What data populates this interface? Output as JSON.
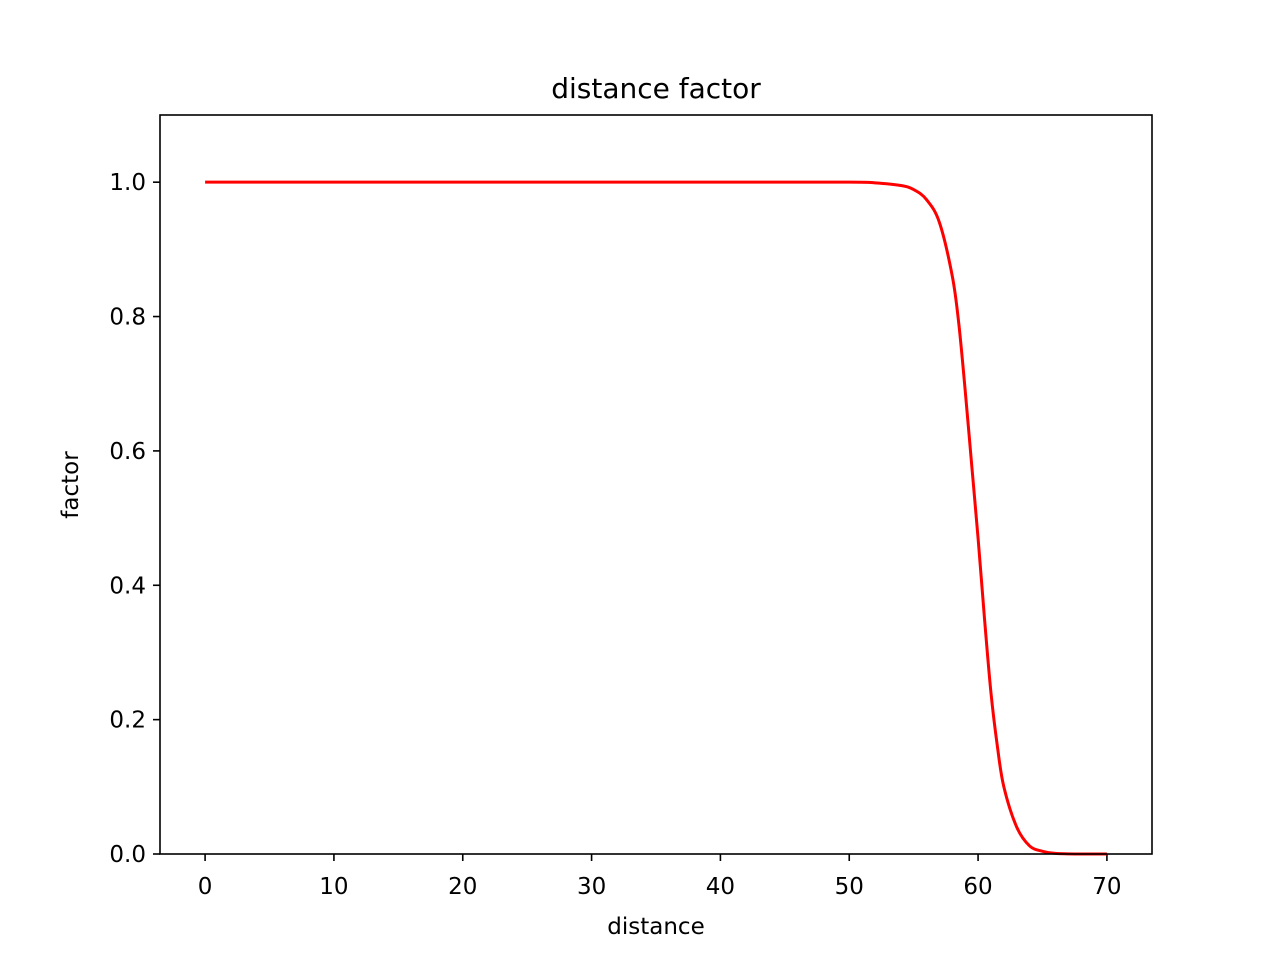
{
  "chart_data": {
    "type": "line",
    "title": "distance factor",
    "xlabel": "distance",
    "ylabel": "factor",
    "xlim": [
      -3.5,
      73.5
    ],
    "ylim": [
      0.0,
      1.1
    ],
    "xticks": [
      0,
      10,
      20,
      30,
      40,
      50,
      60,
      70
    ],
    "yticks": [
      0.0,
      0.2,
      0.4,
      0.6,
      0.8,
      1.0
    ],
    "xtick_labels": [
      "0",
      "10",
      "20",
      "30",
      "40",
      "50",
      "60",
      "70"
    ],
    "ytick_labels": [
      "0.0",
      "0.2",
      "0.4",
      "0.6",
      "0.8",
      "1.0"
    ],
    "grid": false,
    "series": [
      {
        "color": "#ff0000",
        "x": [
          0,
          10,
          20,
          30,
          40,
          50,
          52,
          54,
          55,
          56,
          57,
          58,
          58.5,
          59,
          59.5,
          60,
          60.5,
          61,
          61.5,
          62,
          63,
          64,
          65,
          66,
          68,
          70
        ],
        "y": [
          1.0,
          1.0,
          1.0,
          1.0,
          1.0,
          1.0,
          0.999,
          0.995,
          0.989,
          0.974,
          0.94,
          0.86,
          0.79,
          0.69,
          0.58,
          0.47,
          0.35,
          0.24,
          0.16,
          0.1,
          0.04,
          0.012,
          0.004,
          0.001,
          0.0,
          0.0
        ]
      }
    ]
  }
}
